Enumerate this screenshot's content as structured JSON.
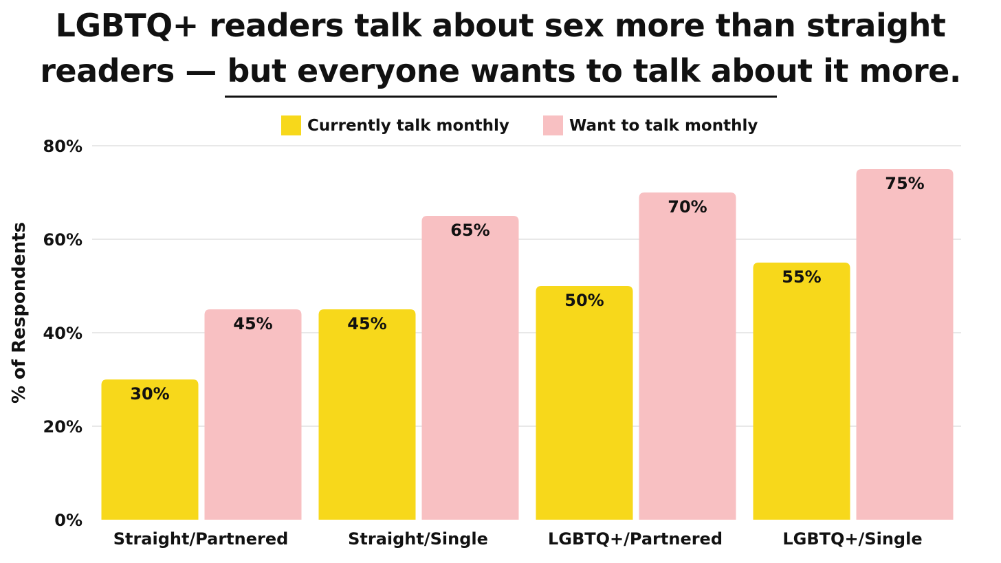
{
  "title": {
    "line1": "LGBTQ+ readers talk about sex more than straight",
    "line2": "readers — but everyone wants to talk about it more."
  },
  "chart_data": {
    "type": "bar",
    "categories": [
      "Straight/Partnered",
      "Straight/Single",
      "LGBTQ+/Partnered",
      "LGBTQ+/Single"
    ],
    "series": [
      {
        "name": "Currently talk monthly",
        "values": [
          30,
          45,
          50,
          55
        ],
        "color": "#F7D81B"
      },
      {
        "name": "Want to talk monthly",
        "values": [
          45,
          65,
          70,
          75
        ],
        "color": "#F8C0C2"
      }
    ],
    "xlabel": "",
    "ylabel": "% of Respondents",
    "ylim": [
      0,
      80
    ],
    "yticks": [
      0,
      20,
      40,
      60,
      80
    ],
    "ytick_labels": [
      "0%",
      "20%",
      "40%",
      "60%",
      "80%"
    ],
    "data_labels": [
      [
        "30%",
        "45%",
        "50%",
        "55%"
      ],
      [
        "45%",
        "65%",
        "70%",
        "75%"
      ]
    ],
    "grid": true,
    "legend_position": "top-center"
  }
}
